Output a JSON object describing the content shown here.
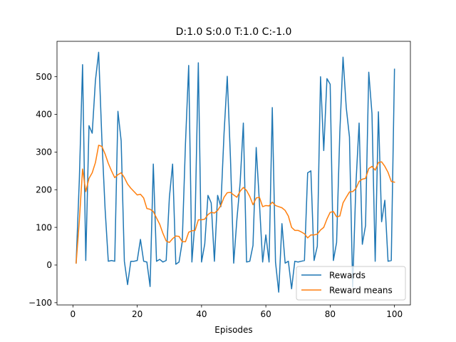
{
  "chart_data": {
    "type": "line",
    "title": "D:1.0 S:0.0 T:1.0 C:-1.0",
    "xlabel": "Episodes",
    "ylabel": "",
    "xlim": [
      -4.95,
      104.95
    ],
    "ylim": [
      -106,
      594
    ],
    "xticks": [
      0,
      20,
      40,
      60,
      80,
      100
    ],
    "yticks": [
      -100,
      0,
      100,
      200,
      300,
      400,
      500
    ],
    "grid": false,
    "legend_position": "lower right",
    "x": [
      1,
      2,
      3,
      4,
      5,
      6,
      7,
      8,
      9,
      10,
      11,
      12,
      13,
      14,
      15,
      16,
      17,
      18,
      19,
      20,
      21,
      22,
      23,
      24,
      25,
      26,
      27,
      28,
      29,
      30,
      31,
      32,
      33,
      34,
      35,
      36,
      37,
      38,
      39,
      40,
      41,
      42,
      43,
      44,
      45,
      46,
      47,
      48,
      49,
      50,
      51,
      52,
      53,
      54,
      55,
      56,
      57,
      58,
      59,
      60,
      61,
      62,
      63,
      64,
      65,
      66,
      67,
      68,
      69,
      70,
      71,
      72,
      73,
      74,
      75,
      76,
      77,
      78,
      79,
      80,
      81,
      82,
      83,
      84,
      85,
      86,
      87,
      88,
      89,
      90,
      91,
      92,
      93,
      94,
      95,
      96,
      97,
      98,
      99,
      100
    ],
    "series": [
      {
        "name": "Rewards",
        "color": "#1f77b4",
        "values": [
          5,
          228,
          532,
          12,
          370,
          350,
          490,
          565,
          335,
          150,
          10,
          12,
          10,
          408,
          330,
          10,
          -52,
          10,
          10,
          12,
          68,
          10,
          8,
          -57,
          268,
          10,
          15,
          8,
          12,
          180,
          268,
          2,
          8,
          62,
          322,
          530,
          8,
          120,
          537,
          8,
          56,
          185,
          165,
          10,
          185,
          155,
          350,
          501,
          282,
          5,
          122,
          218,
          377,
          8,
          10,
          52,
          312,
          165,
          8,
          80,
          8,
          418,
          8,
          -72,
          110,
          5,
          10,
          -63,
          10,
          8,
          10,
          12,
          245,
          250,
          12,
          50,
          500,
          304,
          495,
          480,
          12,
          60,
          352,
          552,
          418,
          340,
          -58,
          213,
          377,
          55,
          105,
          512,
          402,
          10,
          407,
          115,
          172,
          10,
          12,
          520
        ]
      },
      {
        "name": "Reward means",
        "color": "#ff7f0e",
        "values": [
          5,
          118,
          255,
          195,
          230,
          245,
          272,
          318,
          315,
          295,
          270,
          250,
          232,
          240,
          245,
          232,
          215,
          204,
          195,
          186,
          188,
          178,
          150,
          148,
          142,
          125,
          108,
          84,
          64,
          60,
          70,
          77,
          76,
          62,
          62,
          87,
          91,
          92,
          120,
          120,
          122,
          134,
          140,
          138,
          145,
          158,
          180,
          192,
          193,
          186,
          180,
          196,
          206,
          198,
          182,
          160,
          178,
          180,
          155,
          158,
          157,
          167,
          158,
          155,
          152,
          145,
          130,
          100,
          92,
          92,
          88,
          83,
          72,
          80,
          80,
          82,
          93,
          100,
          122,
          140,
          142,
          128,
          130,
          165,
          180,
          194,
          195,
          203,
          222,
          228,
          230,
          256,
          262,
          252,
          272,
          274,
          262,
          246,
          222,
          220
        ]
      }
    ]
  }
}
